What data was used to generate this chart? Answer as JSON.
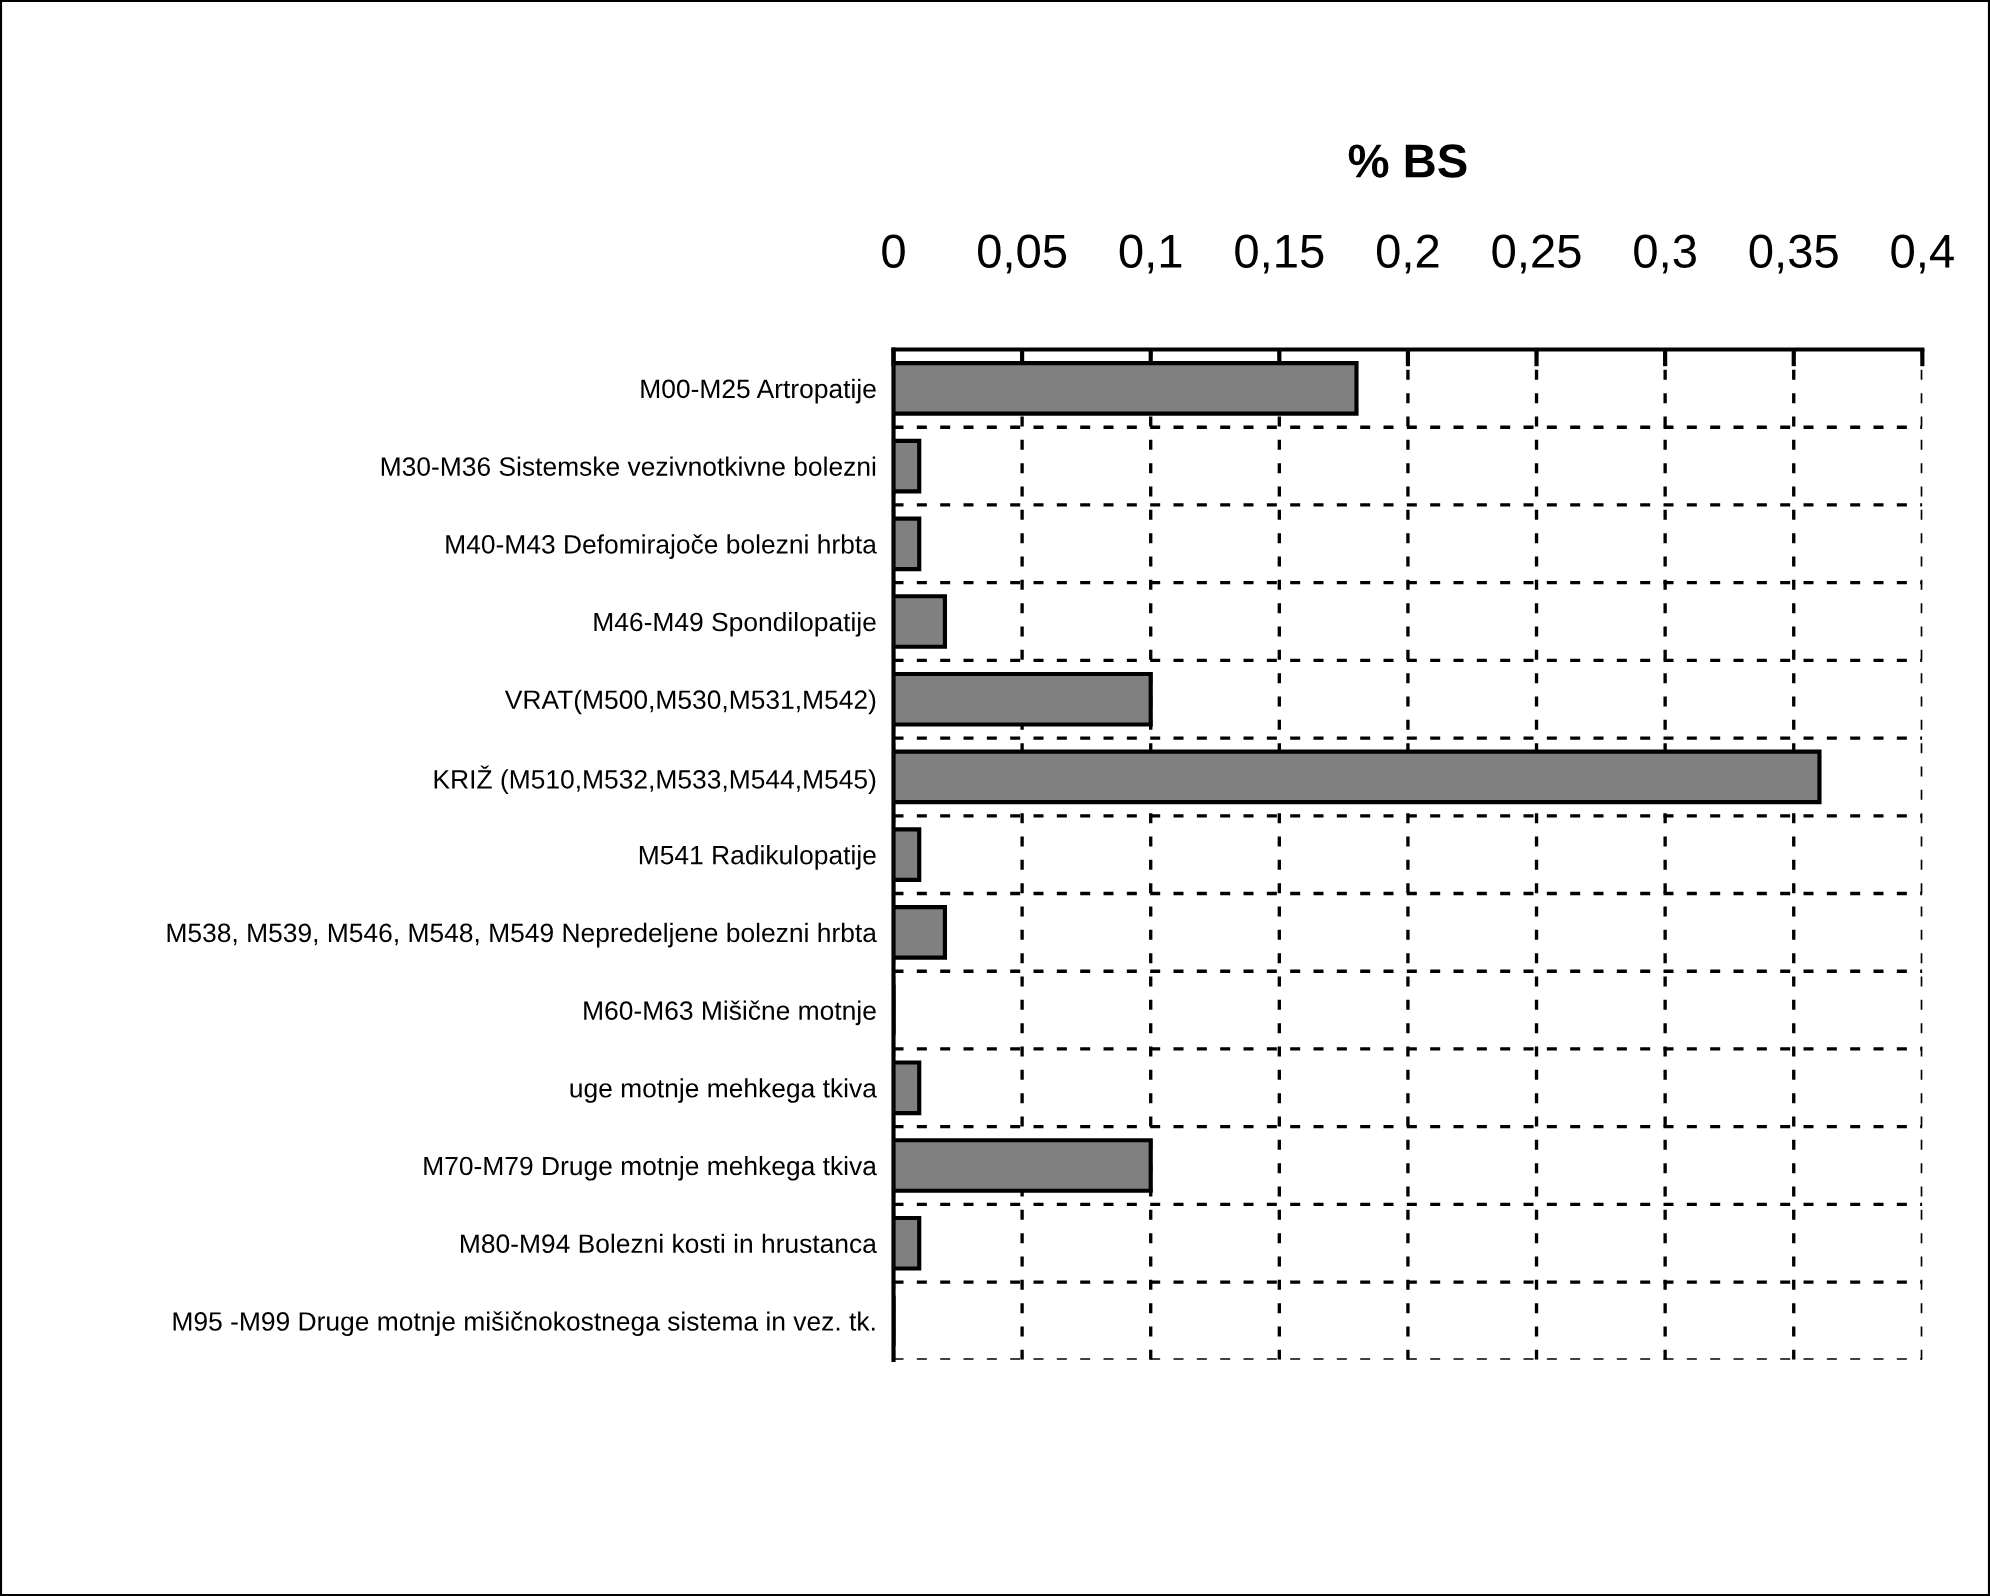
{
  "chart_data": {
    "type": "bar",
    "orientation": "horizontal",
    "title": "% BS",
    "categories": [
      "M00-M25 Artropatije",
      "M30-M36 Sistemske vezivnotkivne bolezni",
      "M40-M43 Defomirajoče bolezni hrbta",
      "M46-M49 Spondilopatije",
      "VRAT(M500,M530,M531,M542)",
      "KRIŽ (M510,M532,M533,M544,M545)",
      "M541 Radikulopatije",
      "M538, M539, M546, M548, M549 Nepredeljene bolezni hrbta",
      "M60-M63 Mišične motnje",
      "uge motnje mehkega tkiva",
      "M70-M79 Druge motnje mehkega tkiva",
      "M80-M94 Bolezni kosti in hrustanca",
      "M95 -M99 Druge motnje mišičnokostnega sistema in vez. tk."
    ],
    "values": [
      0.18,
      0.01,
      0.01,
      0.02,
      0.1,
      0.36,
      0.01,
      0.02,
      0,
      0.01,
      0.1,
      0.01,
      0
    ],
    "color": "#808080",
    "xlim": [
      0,
      0.4
    ],
    "xticks": [
      0,
      {
        "value": 0.05,
        "label": "0,05"
      },
      {
        "value": 0.1,
        "label": "0,1"
      },
      {
        "value": 0.15,
        "label": "0,15"
      },
      {
        "value": 0.2,
        "label": "0,2"
      },
      {
        "value": 0.25,
        "label": "0,25"
      },
      {
        "value": 0.3,
        "label": "0,3"
      },
      {
        "value": 0.35,
        "label": "0,35"
      },
      {
        "value": 0.4,
        "label": "0,4"
      }
    ],
    "grid": true
  }
}
